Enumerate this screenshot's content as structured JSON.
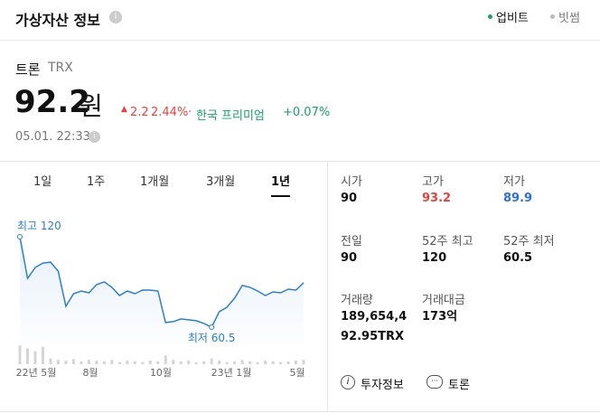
{
  "header": {
    "title": "가상자산 정보",
    "exchanges": [
      "업비트",
      "빗썸"
    ]
  },
  "asset": {
    "name": "트론",
    "symbol": "TRX",
    "price": "92.2",
    "unit": "원",
    "change": "2.2",
    "change_rate": "2.44%",
    "premium_label": "한국 프리미엄",
    "premium": "+0.07%",
    "time": "05.01. 22:33"
  },
  "tabs": [
    "1일",
    "1주",
    "1개월",
    "3개월",
    "1년"
  ],
  "chart": {
    "values": [
      120,
      92.6,
      99.8,
      102.7,
      103.3,
      97.4,
      74.2,
      82.5,
      84.3,
      83.1,
      88.5,
      90.3,
      86.7,
      81.3,
      84.3,
      82.5,
      84.9,
      84.9,
      84.3,
      63.5,
      64.1,
      65.9,
      65.3,
      64.7,
      62.9,
      60.5,
      70.6,
      73.6,
      79.5,
      87.9,
      86.7,
      84.3,
      81.3,
      83.7,
      83.1,
      85.5,
      84.9,
      89.7
    ],
    "volumes": [
      26,
      22,
      18,
      24,
      8,
      6,
      5,
      7,
      4,
      6,
      5,
      4,
      6,
      3,
      5,
      4,
      3,
      5,
      4,
      12,
      6,
      4,
      5,
      3,
      4,
      8,
      5,
      3,
      4,
      6,
      4,
      3,
      5,
      4,
      3,
      4,
      5,
      6
    ],
    "ylim": [
      55,
      125
    ],
    "vlim": [
      0,
      30
    ],
    "high_label": "최고 120",
    "low_label": "최저 60.5",
    "xlabels": [
      "22년 5월",
      "8월",
      "10월",
      "23년 1월",
      "5월"
    ]
  },
  "stats": [
    {
      "label": "시가",
      "value": "90"
    },
    {
      "label": "고가",
      "value": "93.2"
    },
    {
      "label": "저가",
      "value": "89.9"
    },
    {
      "label": "전일",
      "value": "90"
    },
    {
      "label": "52주 최고",
      "value": "120"
    },
    {
      "label": "52주 최저",
      "value": "60.5"
    },
    {
      "label": "거래량",
      "value": "189,654,492.95TRX"
    },
    {
      "label": "거래대금",
      "value": "173억"
    }
  ],
  "links": [
    "투자정보",
    "토론"
  ]
}
